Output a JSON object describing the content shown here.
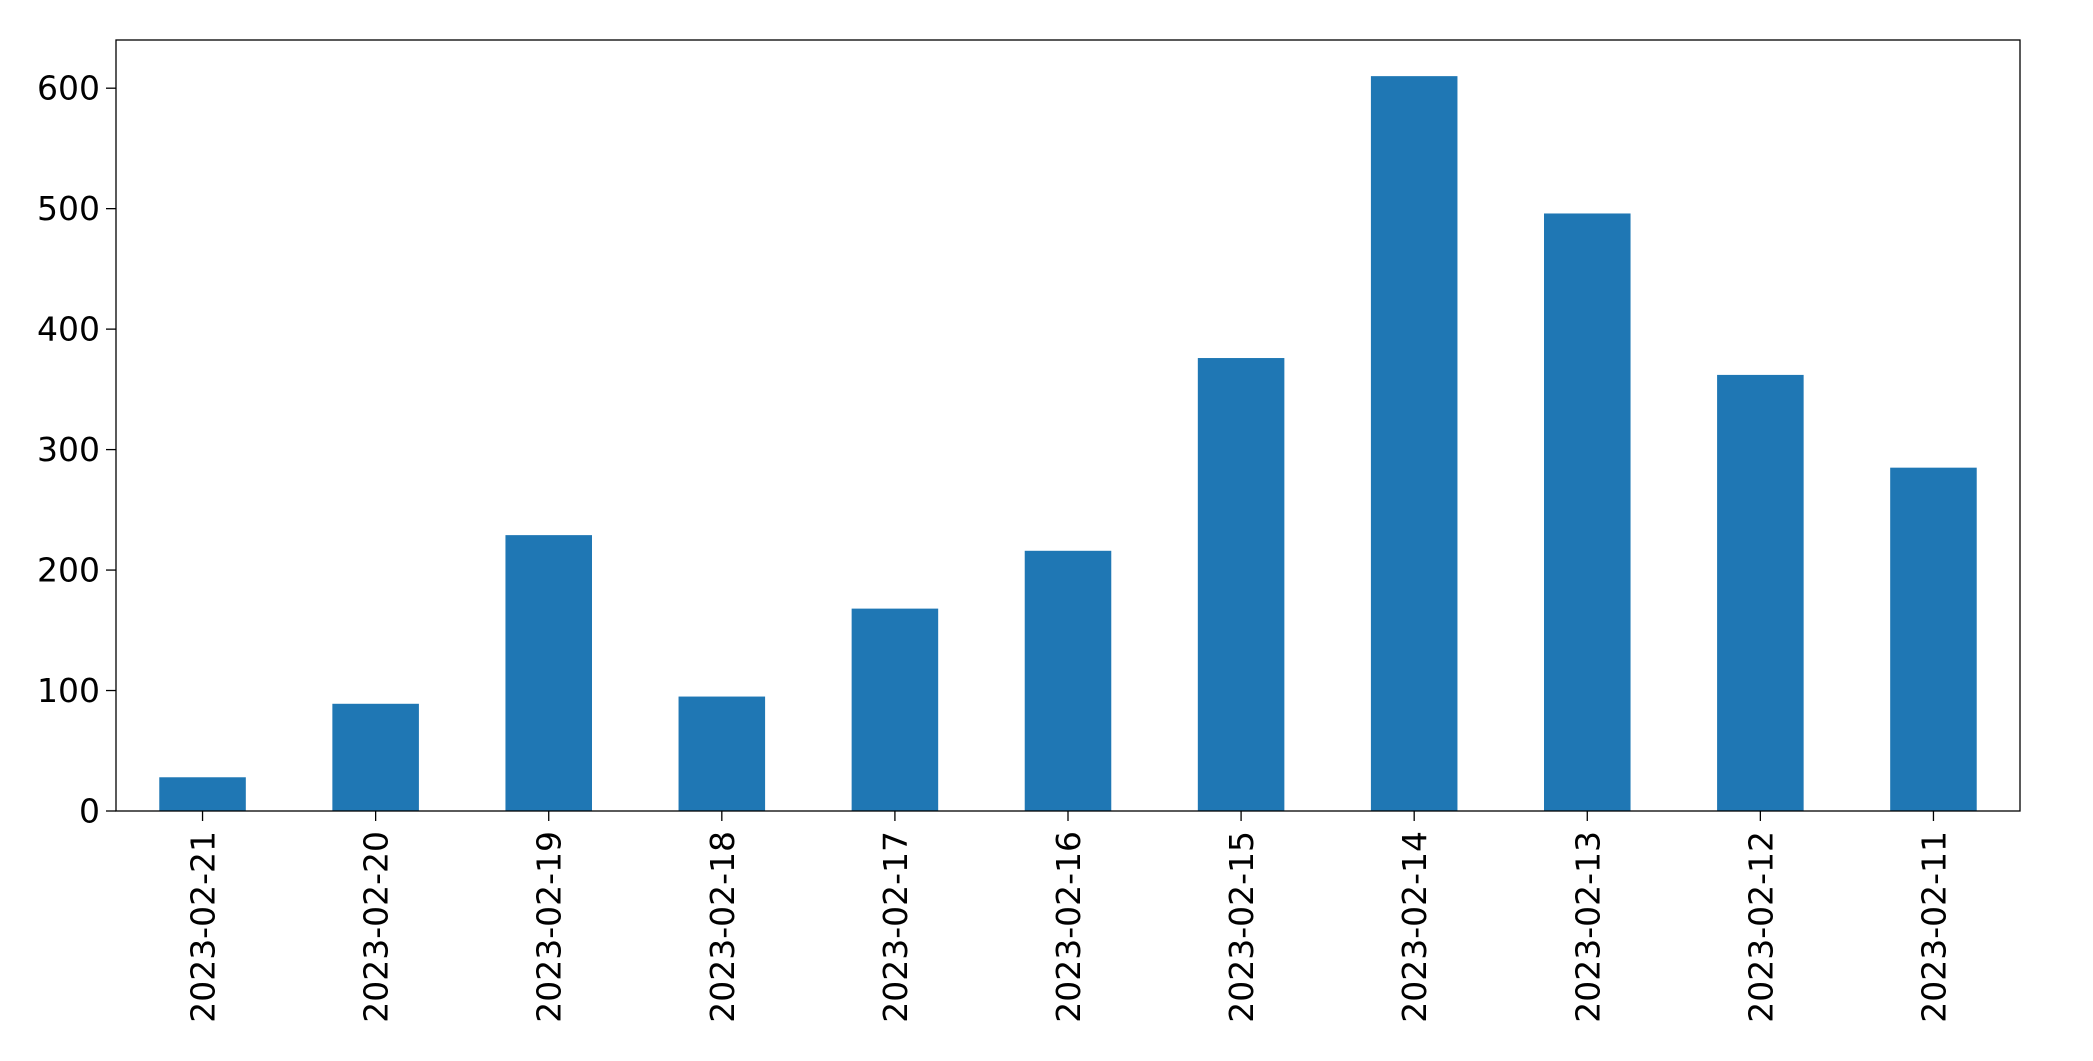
{
  "chart_data": {
    "type": "bar",
    "title": "",
    "xlabel": "",
    "ylabel": "",
    "categories": [
      "2023-02-21",
      "2023-02-20",
      "2023-02-19",
      "2023-02-18",
      "2023-02-17",
      "2023-02-16",
      "2023-02-15",
      "2023-02-14",
      "2023-02-13",
      "2023-02-12",
      "2023-02-11"
    ],
    "values": [
      28,
      89,
      229,
      95,
      168,
      216,
      376,
      610,
      496,
      362,
      285
    ],
    "ylim": [
      0,
      640
    ],
    "yticks": [
      0,
      100,
      200,
      300,
      400,
      500,
      600
    ],
    "bar_color": "#1f77b4",
    "grid": false,
    "legend": "none"
  }
}
